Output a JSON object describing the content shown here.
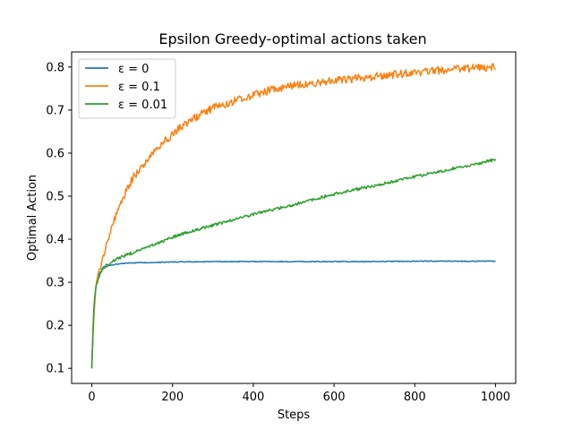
{
  "chart_data": {
    "type": "line",
    "title": "Epsilon Greedy-optimal actions taken",
    "xlabel": "Steps",
    "ylabel": "Optimal Action",
    "xlim": [
      -50,
      1050
    ],
    "ylim": [
      0.065,
      0.835
    ],
    "xticks": [
      0,
      200,
      400,
      600,
      800,
      1000
    ],
    "yticks": [
      0.1,
      0.2,
      0.3,
      0.4,
      0.5,
      0.6,
      0.7,
      0.8
    ],
    "xtick_labels": [
      "0",
      "200",
      "400",
      "600",
      "800",
      "1000"
    ],
    "ytick_labels": [
      "0.1",
      "0.2",
      "0.3",
      "0.4",
      "0.5",
      "0.6",
      "0.7",
      "0.8"
    ],
    "legend_position": "upper-left",
    "grid": false,
    "series": [
      {
        "name": "ε = 0",
        "color": "#1f77b4",
        "x": [
          0,
          5,
          10,
          15,
          20,
          30,
          40,
          50,
          60,
          80,
          100,
          150,
          200,
          300,
          400,
          500,
          600,
          700,
          800,
          900,
          1000
        ],
        "y": [
          0.1,
          0.24,
          0.29,
          0.31,
          0.322,
          0.333,
          0.338,
          0.34,
          0.342,
          0.344,
          0.345,
          0.346,
          0.347,
          0.348,
          0.348,
          0.348,
          0.348,
          0.348,
          0.349,
          0.349,
          0.349
        ]
      },
      {
        "name": "ε = 0.1",
        "color": "#ff7f0e",
        "x": [
          0,
          5,
          10,
          20,
          30,
          50,
          75,
          100,
          150,
          200,
          250,
          300,
          350,
          400,
          450,
          500,
          600,
          700,
          800,
          900,
          1000
        ],
        "y": [
          0.1,
          0.22,
          0.29,
          0.33,
          0.37,
          0.43,
          0.49,
          0.54,
          0.6,
          0.645,
          0.68,
          0.705,
          0.72,
          0.735,
          0.748,
          0.757,
          0.768,
          0.778,
          0.787,
          0.795,
          0.8
        ]
      },
      {
        "name": "ε = 0.01",
        "color": "#2ca02c",
        "x": [
          0,
          5,
          10,
          20,
          30,
          50,
          75,
          100,
          150,
          200,
          250,
          300,
          350,
          400,
          500,
          600,
          700,
          800,
          900,
          1000
        ],
        "y": [
          0.1,
          0.24,
          0.29,
          0.32,
          0.335,
          0.348,
          0.36,
          0.368,
          0.385,
          0.405,
          0.42,
          0.432,
          0.445,
          0.458,
          0.48,
          0.505,
          0.525,
          0.545,
          0.565,
          0.585
        ]
      }
    ]
  }
}
